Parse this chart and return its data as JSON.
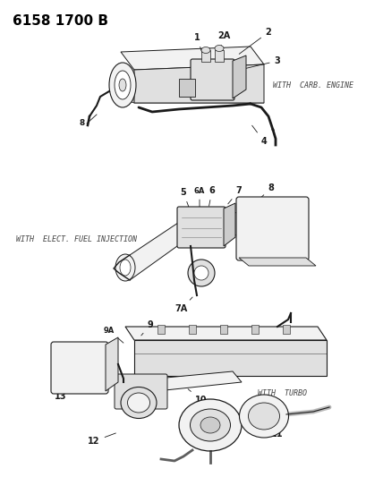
{
  "title": "6158 1700 B",
  "background_color": "#ffffff",
  "with_carb_label": "WITH  CARB. ENGINE",
  "with_efi_label": "WITH  ELECT. FUEL INJECTION",
  "with_turbo_label": "WITH  TURBO",
  "title_fontsize": 11,
  "label_fontsize": 6.0,
  "annotation_fontsize": 7.0
}
